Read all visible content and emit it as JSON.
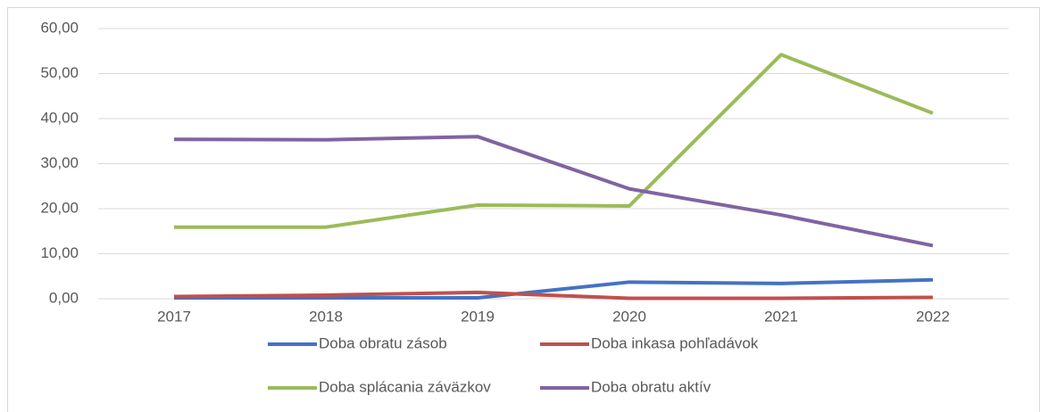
{
  "chart_data": {
    "type": "line",
    "categories": [
      "2017",
      "2018",
      "2019",
      "2020",
      "2021",
      "2022"
    ],
    "series": [
      {
        "name": "Doba obratu zásob",
        "color": "#4472c4",
        "values": [
          0.2,
          0.2,
          0.2,
          3.7,
          3.4,
          4.2
        ]
      },
      {
        "name": "Doba inkasa pohľadávok",
        "color": "#c0504d",
        "values": [
          0.5,
          0.8,
          1.4,
          0.1,
          0.1,
          0.3
        ]
      },
      {
        "name": "Doba splácania záväzkov",
        "color": "#9bbb59",
        "values": [
          15.9,
          15.9,
          20.8,
          20.6,
          54.2,
          41.2
        ]
      },
      {
        "name": "Doba obratu aktív",
        "color": "#8064a2",
        "values": [
          35.4,
          35.3,
          36.0,
          24.4,
          18.6,
          11.8
        ]
      }
    ],
    "ylim": [
      0,
      60
    ],
    "yticks": [
      {
        "value": 0,
        "label": "0,00"
      },
      {
        "value": 10,
        "label": "10,00"
      },
      {
        "value": 20,
        "label": "20,00"
      },
      {
        "value": 30,
        "label": "30,00"
      },
      {
        "value": 40,
        "label": "40,00"
      },
      {
        "value": 50,
        "label": "50,00"
      },
      {
        "value": 60,
        "label": "60,00"
      }
    ],
    "grid": true,
    "legend": "bottom"
  }
}
